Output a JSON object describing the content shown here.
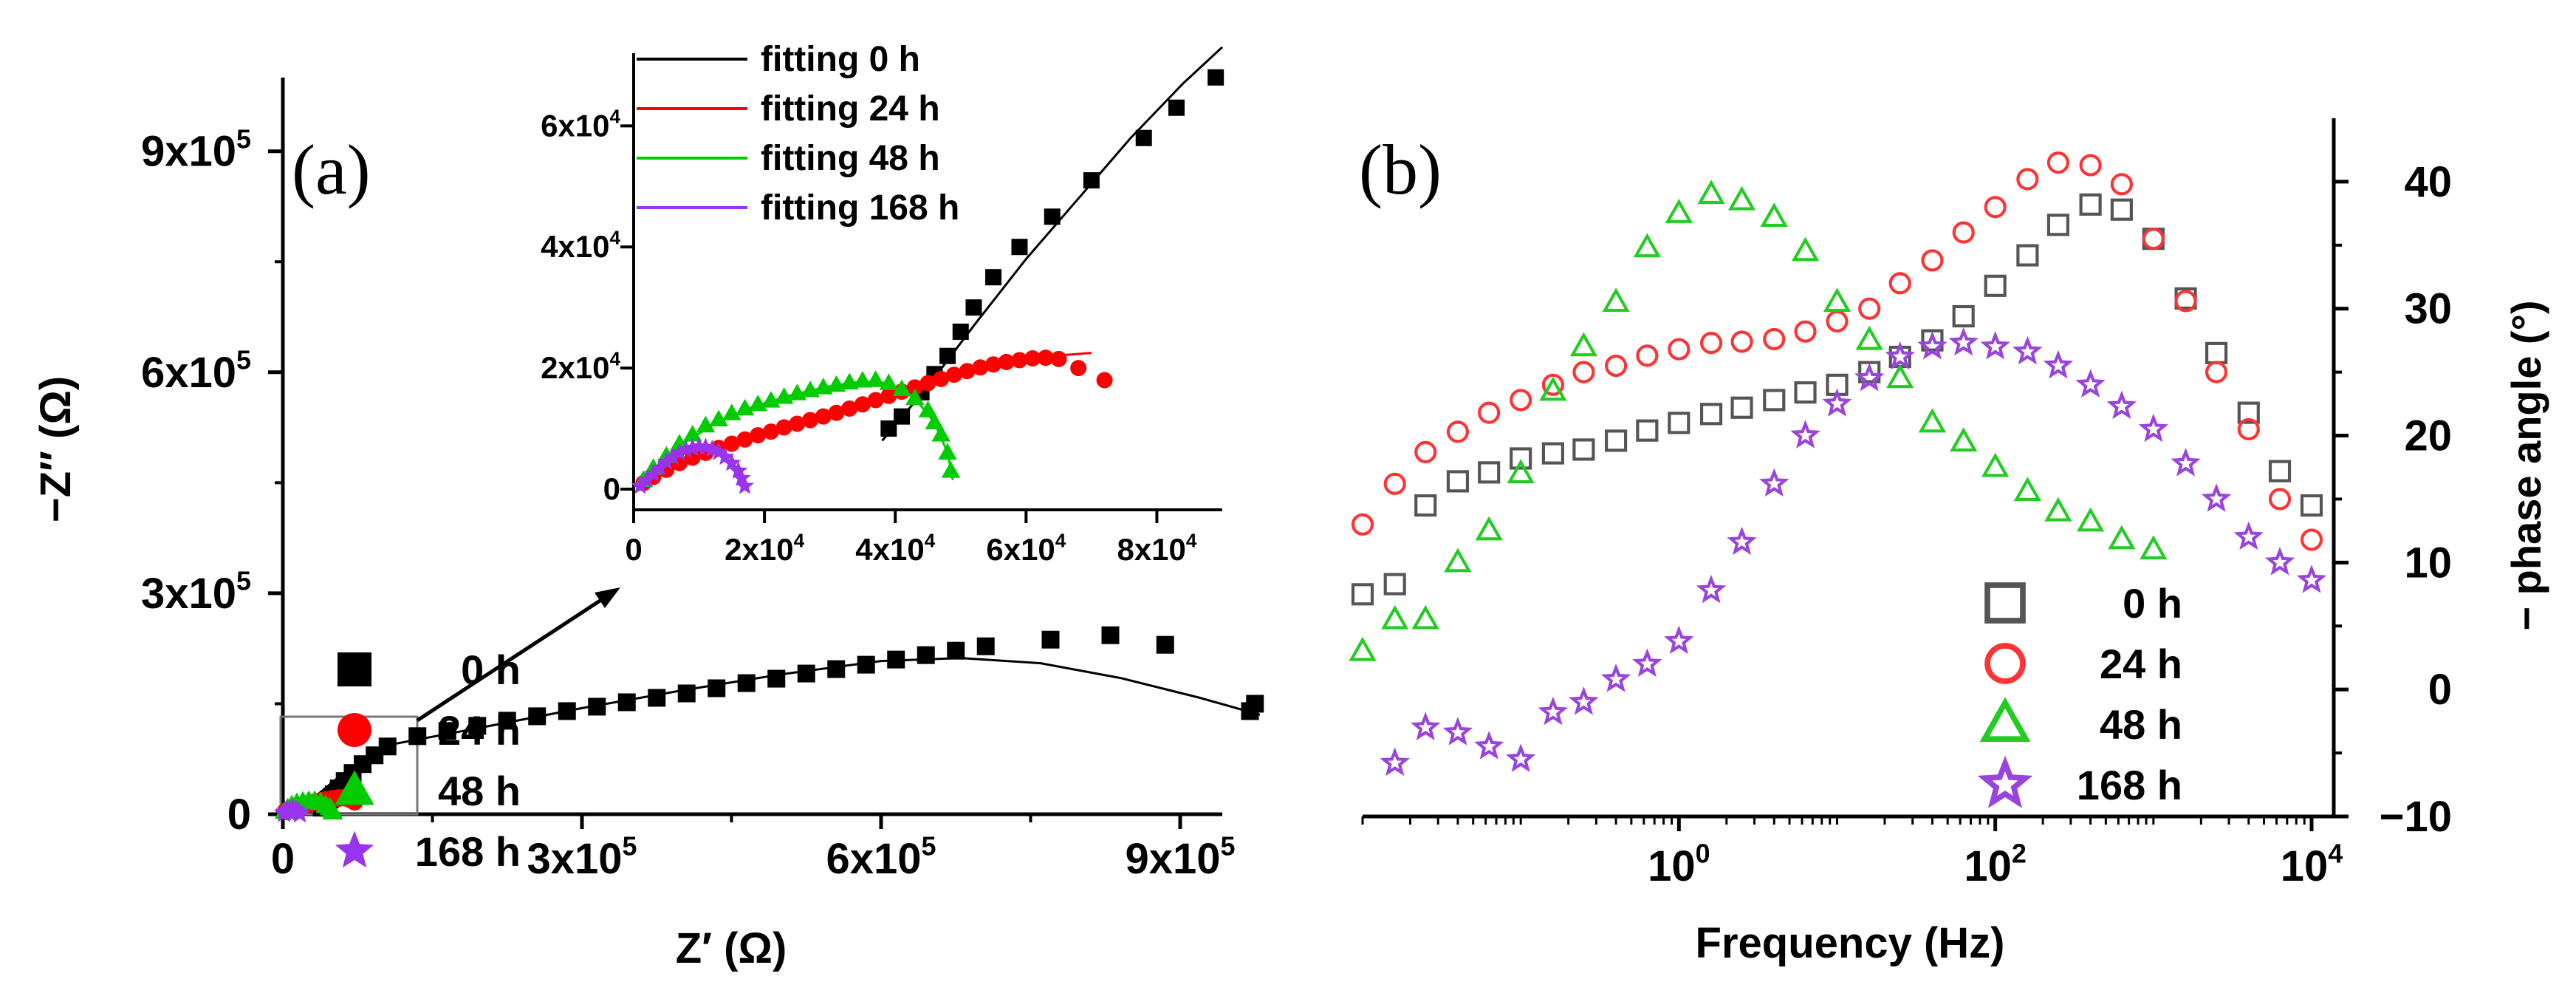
{
  "chart_data": [
    {
      "panel": "a",
      "type": "scatter",
      "panel_label": "(a)",
      "xlabel": "Z′ (Ω)",
      "ylabel": "−Z″ (Ω)",
      "xlim": [
        0,
        1000000
      ],
      "ylim": [
        0,
        1000000
      ],
      "xticks": [
        0,
        300000,
        600000,
        900000
      ],
      "xtick_labels": [
        "0",
        "3x10^5",
        "6x10^5",
        "9x10^5"
      ],
      "yticks": [
        0,
        300000,
        600000,
        900000
      ],
      "ytick_labels": [
        "0",
        "3x10^5",
        "6x10^5",
        "9x10^5"
      ],
      "legend": [
        "0 h",
        "24 h",
        "48 h",
        "168 h"
      ],
      "series": [
        {
          "name": "0 h",
          "color": "#000000",
          "marker": "square",
          "x": [
            39000,
            43000,
            47000,
            51000,
            56000,
            62000,
            70000,
            80000,
            92000,
            105000,
            135000,
            165000,
            195000,
            225000,
            255000,
            285000,
            315000,
            345000,
            375000,
            405000,
            435000,
            465000,
            495000,
            525000,
            555000,
            585000,
            615000,
            645000,
            675000,
            705000,
            770000,
            830000,
            885000,
            970000,
            975000
          ],
          "y": [
            9000,
            14000,
            20000,
            27000,
            35000,
            45000,
            56000,
            68000,
            80000,
            92000,
            106000,
            113000,
            120000,
            127000,
            133000,
            140000,
            146000,
            152000,
            158000,
            164000,
            171000,
            178000,
            184000,
            191000,
            197000,
            203000,
            210000,
            216000,
            222000,
            228000,
            237000,
            243000,
            230000,
            140000,
            150000
          ]
        },
        {
          "name": "24 h",
          "color": "#ff0000",
          "marker": "circle",
          "x": [
            3000,
            6000,
            10000,
            15000,
            20000,
            26000,
            32000,
            38000,
            44000,
            50000,
            56000,
            62000,
            68000,
            72000
          ],
          "y": [
            4000,
            6000,
            8000,
            10000,
            12000,
            14000,
            16000,
            18000,
            19500,
            21000,
            22000,
            22500,
            20000,
            17000
          ]
        },
        {
          "name": "48 h",
          "color": "#00cc00",
          "marker": "triangle",
          "x": [
            2000,
            5000,
            9000,
            14000,
            20000,
            26000,
            32000,
            38000,
            43000,
            47000,
            49000,
            50000
          ],
          "y": [
            4000,
            8000,
            12000,
            15000,
            17000,
            18000,
            18000,
            16000,
            12000,
            9000,
            6000,
            3000
          ]
        },
        {
          "name": "168 h",
          "color": "#9933ee",
          "marker": "star",
          "x": [
            1000,
            2000,
            4000,
            7000,
            10000,
            13000,
            16000,
            17000
          ],
          "y": [
            1000,
            3000,
            5000,
            6500,
            7000,
            6000,
            3000,
            500
          ]
        }
      ],
      "fit_0h": {
        "x": [
          20000,
          60000,
          110000,
          200000,
          300000,
          400000,
          500000,
          600000,
          680000,
          760000,
          840000,
          920000,
          980000
        ],
        "y": [
          10000,
          55000,
          95000,
          118000,
          144000,
          168000,
          190000,
          208000,
          212000,
          205000,
          185000,
          158000,
          135000
        ]
      },
      "inset": {
        "xlim": [
          0,
          90000
        ],
        "ylim": [
          0,
          72000
        ],
        "xticks": [
          0,
          20000,
          40000,
          60000,
          80000
        ],
        "xtick_labels": [
          "0",
          "2x10^4",
          "4x10^4",
          "6x10^4",
          "8x10^4"
        ],
        "yticks": [
          0,
          20000,
          40000,
          60000
        ],
        "ytick_labels": [
          "0",
          "2x10^4",
          "4x10^4",
          "6x10^4"
        ],
        "legend": [
          "fitting    0 h",
          "fitting   24 h",
          "fitting   48 h",
          "fitting 168 h"
        ],
        "series": [
          {
            "name": "0 h",
            "color": "#000000",
            "marker": "square",
            "x": [
              39000,
              41000,
              44000,
              46000,
              48000,
              50000,
              52000,
              55000,
              59000,
              64000,
              70000,
              78000,
              83000,
              89000
            ],
            "y": [
              10000,
              12000,
              16000,
              19000,
              22000,
              26000,
              30000,
              35000,
              40000,
              45000,
              51000,
              58000,
              63000,
              68000
            ]
          },
          {
            "name": "24 h",
            "color": "#ff0000",
            "marker": "circle",
            "x": [
              1500,
              3000,
              5000,
              7000,
              9000,
              11000,
              13000,
              15000,
              17000,
              19000,
              21000,
              23000,
              25000,
              27000,
              29000,
              31000,
              33000,
              35000,
              37000,
              39000,
              41000,
              43000,
              45000,
              47000,
              49000,
              51000,
              53000,
              55000,
              57000,
              59000,
              61000,
              63000,
              65000,
              68000,
              72000
            ],
            "y": [
              1000,
              2000,
              3200,
              4300,
              5200,
              6000,
              6800,
              7500,
              8200,
              8900,
              9500,
              10200,
              10800,
              11400,
              12000,
              12600,
              13300,
              14000,
              14700,
              15400,
              16100,
              16800,
              17500,
              18200,
              18900,
              19500,
              20100,
              20600,
              21000,
              21300,
              21600,
              21700,
              21500,
              20000,
              18000
            ]
          },
          {
            "name": "48 h",
            "color": "#00cc00",
            "marker": "triangle",
            "x": [
              1500,
              3000,
              5000,
              7000,
              9000,
              11000,
              13000,
              15000,
              17000,
              19000,
              21000,
              23000,
              25000,
              27000,
              29000,
              31000,
              33000,
              35000,
              37000,
              39000,
              41000,
              43000,
              45000,
              46000,
              47000,
              48000,
              48500
            ],
            "y": [
              1500,
              3500,
              5500,
              7500,
              9000,
              10500,
              11500,
              12500,
              13300,
              14000,
              14600,
              15200,
              15800,
              16300,
              16800,
              17200,
              17600,
              17900,
              18000,
              17500,
              16500,
              15000,
              13000,
              11000,
              9000,
              6000,
              3000
            ]
          },
          {
            "name": "168 h",
            "color": "#9933ee",
            "marker": "star",
            "x": [
              1000,
              2000,
              3000,
              4000,
              5000,
              6000,
              7000,
              8000,
              9000,
              10000,
              11000,
              12000,
              13000,
              14000,
              15000,
              16000,
              16500,
              17000
            ],
            "y": [
              500,
              1500,
              2500,
              3500,
              4500,
              5300,
              6000,
              6500,
              6800,
              7000,
              6900,
              6600,
              6100,
              5300,
              4300,
              3000,
              1800,
              500
            ]
          }
        ],
        "fits": [
          {
            "name": "0 h",
            "color": "#000000",
            "x": [
              38000,
              45000,
              52000,
              60000,
              68000,
              76000,
              84000,
              90000
            ],
            "y": [
              8000,
              17000,
              27000,
              38000,
              48000,
              58000,
              67000,
              73000
            ]
          },
          {
            "name": "24 h",
            "color": "#ff0000",
            "x": [
              1000,
              8000,
              16000,
              24000,
              32000,
              40000,
              48000,
              56000,
              64000,
              70000
            ],
            "y": [
              300,
              5000,
              8200,
              11000,
              13500,
              16000,
              18500,
              20500,
              22000,
              22500
            ]
          },
          {
            "name": "48 h",
            "color": "#00cc00",
            "x": [
              1000,
              6000,
              12000,
              18000,
              24000,
              30000,
              35000,
              39000,
              43000,
              46000,
              48000,
              48800
            ],
            "y": [
              300,
              6500,
              10500,
              13500,
              15500,
              17000,
              17800,
              17500,
              15000,
              11000,
              6000,
              1500
            ]
          },
          {
            "name": "168 h",
            "color": "#9933ee",
            "x": [
              500,
              2000,
              4000,
              6000,
              8000,
              10000,
              12000,
              14000,
              15500,
              16500,
              17000
            ],
            "y": [
              0,
              2000,
              4200,
              5800,
              6700,
              7000,
              6700,
              5500,
              3800,
              1800,
              300
            ]
          }
        ]
      }
    },
    {
      "panel": "b",
      "type": "scatter",
      "panel_label": "(b)",
      "xlabel": "Frequency (Hz)",
      "ylabel": "− phase angle (°)",
      "xscale": "log",
      "xlim": [
        0.01,
        10000
      ],
      "ylim": [
        -10,
        45
      ],
      "xticks": [
        1,
        100,
        10000
      ],
      "xtick_labels": [
        "10^0",
        "10^2",
        "10^4"
      ],
      "yticks": [
        -10,
        0,
        10,
        20,
        30,
        40
      ],
      "ytick_labels": [
        "-10",
        "0",
        "10",
        "20",
        "30",
        "40"
      ],
      "legend": [
        "0 h",
        "24 h",
        "48 h",
        "168 h"
      ],
      "series": [
        {
          "name": "0 h",
          "color": "#555555",
          "marker": "open-square",
          "x": [
            0.01,
            0.016,
            0.025,
            0.04,
            0.063,
            0.1,
            0.16,
            0.25,
            0.4,
            0.63,
            1,
            1.6,
            2.5,
            4,
            6.3,
            10,
            16,
            25,
            40,
            63,
            100,
            160,
            250,
            400,
            630,
            1000,
            1600,
            2500,
            4000,
            6300,
            10000
          ],
          "y": [
            7.5,
            8.3,
            14.5,
            16.4,
            17.1,
            18.2,
            18.6,
            18.9,
            19.6,
            20.4,
            21.0,
            21.7,
            22.2,
            22.8,
            23.4,
            24.0,
            25.0,
            26.2,
            27.5,
            29.4,
            31.8,
            34.2,
            36.6,
            38.2,
            37.8,
            35.5,
            30.8,
            26.5,
            21.8,
            17.2,
            14.5
          ]
        },
        {
          "name": "24 h",
          "color": "#ff3333",
          "marker": "open-circle",
          "x": [
            0.01,
            0.016,
            0.025,
            0.04,
            0.063,
            0.1,
            0.16,
            0.25,
            0.4,
            0.63,
            1,
            1.6,
            2.5,
            4,
            6.3,
            10,
            16,
            25,
            40,
            63,
            100,
            160,
            250,
            400,
            630,
            1000,
            1600,
            2500,
            4000,
            6300,
            10000
          ],
          "y": [
            13.0,
            16.2,
            18.7,
            20.3,
            21.8,
            22.8,
            24.0,
            25.0,
            25.5,
            26.3,
            26.8,
            27.3,
            27.4,
            27.6,
            28.2,
            29.0,
            30.0,
            32.0,
            33.8,
            36.0,
            38.0,
            40.2,
            41.5,
            41.3,
            39.8,
            35.5,
            30.6,
            25.0,
            20.5,
            15.0,
            11.8
          ]
        },
        {
          "name": "48 h",
          "color": "#22cc22",
          "marker": "open-triangle",
          "x": [
            0.01,
            0.016,
            0.025,
            0.04,
            0.063,
            0.1,
            0.16,
            0.25,
            0.4,
            0.63,
            1,
            1.6,
            2.5,
            4,
            6.3,
            10,
            16,
            25,
            40,
            63,
            100,
            160,
            250,
            400,
            630,
            1000
          ],
          "y": [
            3.0,
            5.5,
            5.5,
            10.0,
            12.5,
            17.0,
            23.5,
            27.0,
            30.5,
            34.8,
            37.5,
            39.0,
            38.5,
            37.2,
            34.5,
            30.5,
            27.5,
            24.5,
            21.0,
            19.5,
            17.5,
            15.6,
            14.0,
            13.2,
            11.8,
            11.0
          ]
        },
        {
          "name": "168 h",
          "color": "#9944dd",
          "marker": "open-star",
          "x": [
            0.016,
            0.025,
            0.04,
            0.063,
            0.1,
            0.16,
            0.25,
            0.4,
            0.63,
            1,
            1.6,
            2.5,
            4,
            6.3,
            10,
            16,
            25,
            40,
            63,
            100,
            160,
            250,
            400,
            630,
            1000,
            1600,
            2500,
            4000,
            6300,
            10000
          ],
          "y": [
            -5.8,
            -3.0,
            -3.4,
            -4.5,
            -5.5,
            -1.8,
            -1.0,
            0.8,
            2.0,
            3.8,
            7.8,
            11.6,
            16.2,
            20.0,
            22.5,
            24.5,
            26.2,
            27.0,
            27.3,
            27.0,
            26.6,
            25.5,
            24.0,
            22.3,
            20.5,
            17.8,
            15.0,
            12.0,
            10.0,
            8.6
          ]
        }
      ]
    }
  ]
}
